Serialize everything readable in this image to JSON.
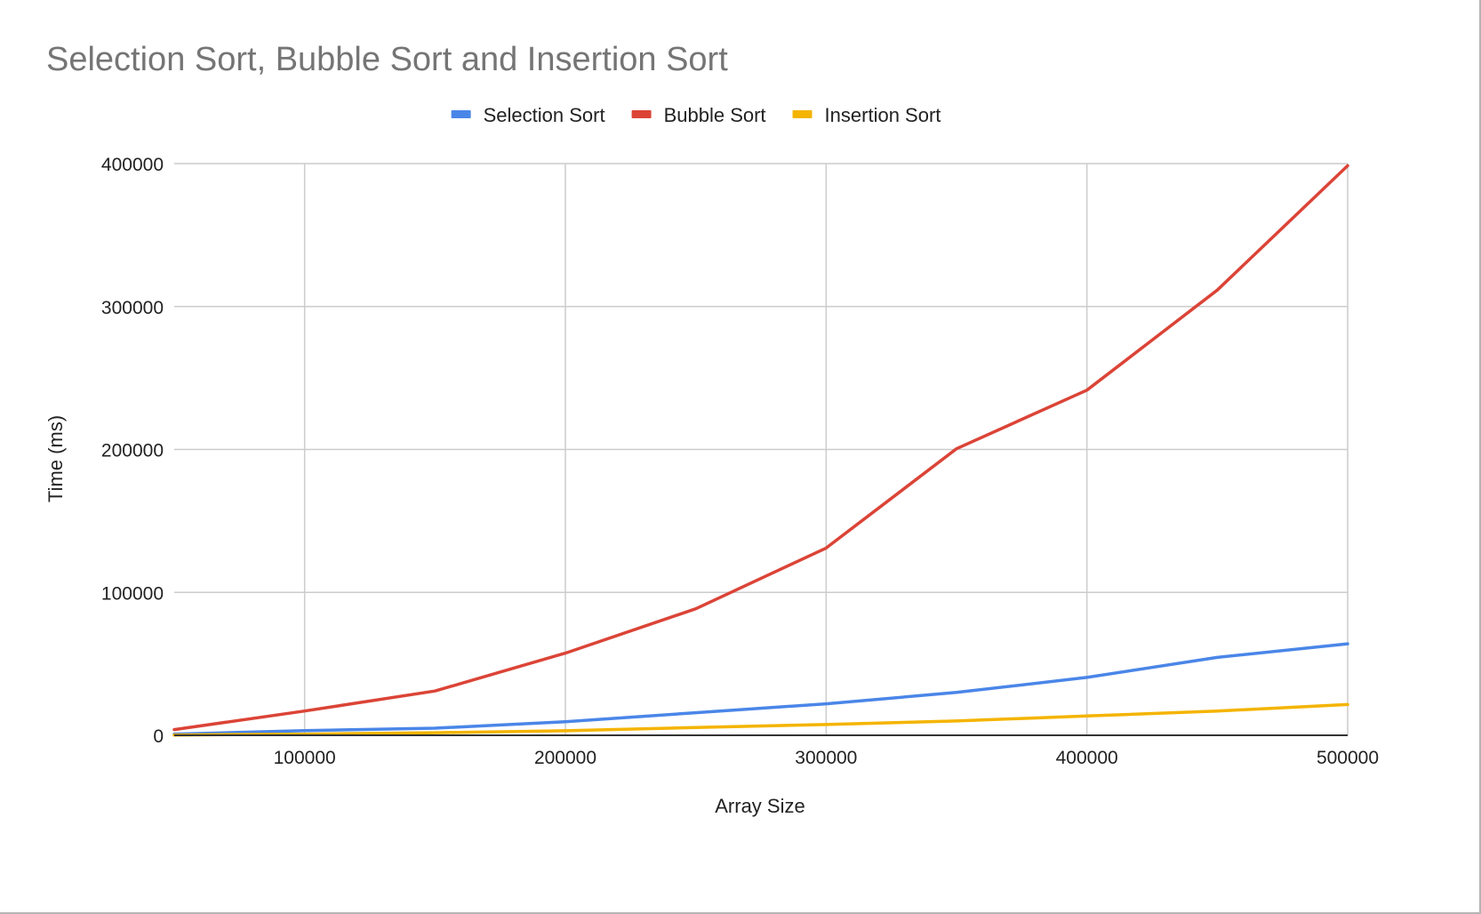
{
  "chart_data": {
    "type": "line",
    "title": "Selection Sort, Bubble Sort and Insertion Sort",
    "xlabel": "Array Size",
    "ylabel": "Time (ms)",
    "xlim": [
      50000,
      500000
    ],
    "ylim": [
      0,
      400000
    ],
    "x_ticks": [
      100000,
      200000,
      300000,
      400000,
      500000
    ],
    "y_ticks": [
      0,
      100000,
      200000,
      300000,
      400000
    ],
    "grid": true,
    "legend_position": "top",
    "x": [
      50000,
      100000,
      150000,
      200000,
      250000,
      300000,
      350000,
      400000,
      450000,
      500000
    ],
    "series": [
      {
        "name": "Selection Sort",
        "color": "#4a86e8",
        "values": [
          800,
          3300,
          5000,
          9500,
          15800,
          22000,
          30000,
          40500,
          54500,
          64000
        ]
      },
      {
        "name": "Bubble Sort",
        "color": "#db4437",
        "values": [
          4000,
          17000,
          31000,
          57500,
          88500,
          131000,
          200500,
          241500,
          311500,
          398500
        ]
      },
      {
        "name": "Insertion Sort",
        "color": "#f4b400",
        "values": [
          200,
          800,
          1800,
          3200,
          5500,
          7500,
          10000,
          13500,
          17000,
          21500
        ]
      }
    ]
  }
}
